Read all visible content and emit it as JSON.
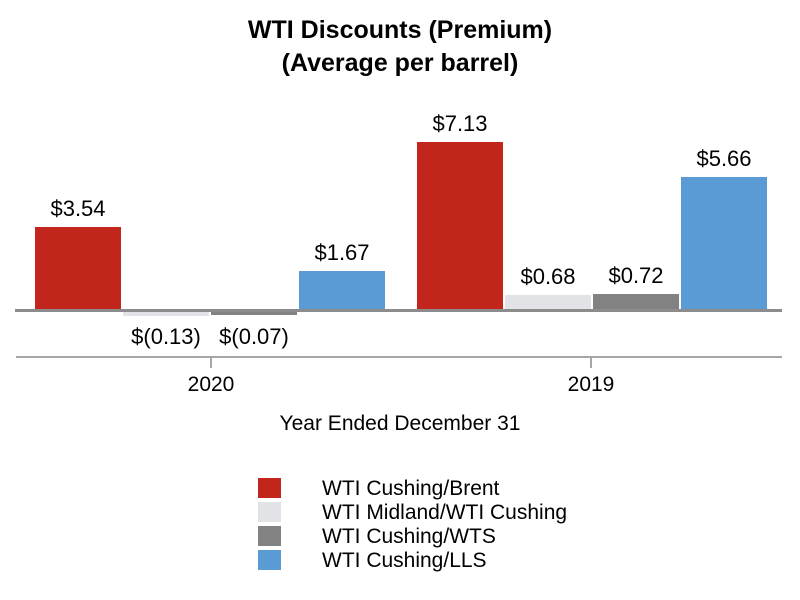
{
  "title": {
    "line1": "WTI Discounts (Premium)",
    "line2": "(Average per barrel)"
  },
  "chart_data": {
    "type": "bar",
    "title": "WTI Discounts (Premium) (Average per barrel)",
    "categories": [
      "2020",
      "2019"
    ],
    "xlabel": "Year Ended December 31",
    "series": [
      {
        "name": "WTI Cushing/Brent",
        "color": "#c2251b",
        "values": [
          3.54,
          7.13
        ],
        "labels": [
          "$3.54",
          "$7.13"
        ]
      },
      {
        "name": "WTI Midland/WTI Cushing",
        "color": "#e1e3e6",
        "values": [
          -0.13,
          0.68
        ],
        "labels": [
          "$(0.13)",
          "$0.68"
        ]
      },
      {
        "name": "WTI Cushing/WTS",
        "color": "#828282",
        "values": [
          -0.07,
          0.72
        ],
        "labels": [
          "$(0.07)",
          "$0.72"
        ]
      },
      {
        "name": "WTI Cushing/LLS",
        "color": "#5b9bd5",
        "values": [
          1.67,
          5.66
        ],
        "labels": [
          "$1.67",
          "$5.66"
        ]
      }
    ],
    "ylim": [
      -0.5,
      8
    ],
    "grid": false,
    "legend_position": "bottom",
    "axis_color": "#a6a6a6",
    "zero_line_color": "#8c8c8c",
    "text_color": "#000000"
  }
}
